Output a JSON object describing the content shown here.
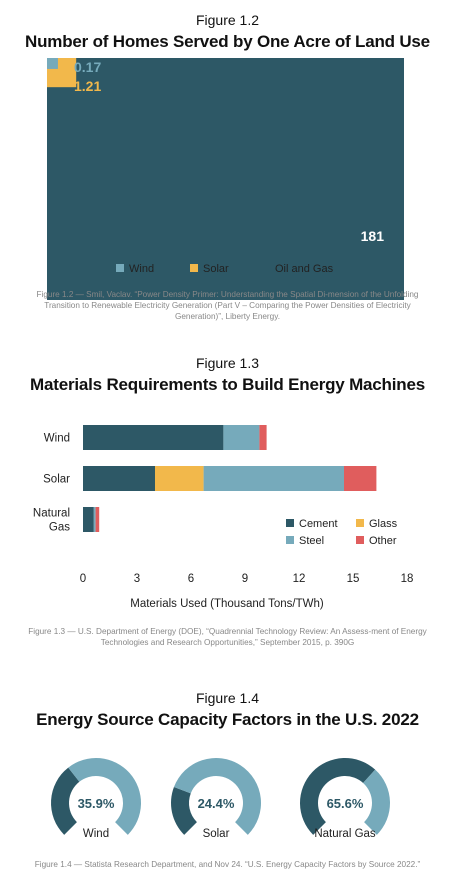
{
  "figures": [
    {
      "label": "Figure 1.2",
      "title": "Number of Homes Served by One Acre of Land Use",
      "caption": "Figure 1.2 — Smil, Vaclav. “Power Density Primer: Understanding the Spatial Di-mension of the Unfolding Transition to Renewable Electricity Generation (Part V – Comparing the Power Densities of Electricity Generation)”, Liberty Energy."
    },
    {
      "label": "Figure 1.3",
      "title": "Materials Requirements to Build Energy Machines",
      "caption": "Figure 1.3 — U.S. Department of Energy (DOE), “Quadrennial Technology Review: An Assess-ment of Energy Technologies and Research Opportunities,” September 2015, p. 390G"
    },
    {
      "label": "Figure 1.4",
      "title": "Energy Source Capacity Factors in the U.S. 2022",
      "caption": "Figure 1.4 — Statista Research Department, and Nov 24. “U.S. Energy Capacity Factors by Source 2022.”"
    }
  ],
  "colors": {
    "dark": "#2d5866",
    "light": "#76aabb",
    "yellow": "#f2b84b",
    "red": "#e05d5d"
  },
  "chart_data": [
    {
      "type": "area",
      "title": "Number of Homes Served by One Acre of Land Use",
      "series": [
        {
          "name": "Wind",
          "value": 0.17,
          "label": "0.17",
          "color": "#76aabb"
        },
        {
          "name": "Solar",
          "value": 1.21,
          "label": "1.21",
          "color": "#f2b84b"
        },
        {
          "name": "Oil and Gas",
          "value": 181,
          "label": "181",
          "color": "#2d5866"
        }
      ],
      "legend": "bottom"
    },
    {
      "type": "bar",
      "orientation": "horizontal",
      "stacked": true,
      "title": "Materials Requirements to Build Energy Machines",
      "categories": [
        "Wind",
        "Solar",
        "Natural Gas"
      ],
      "category_lines": [
        [
          "Wind"
        ],
        [
          "Solar"
        ],
        [
          "Natural",
          "Gas"
        ]
      ],
      "series": [
        {
          "name": "Cement",
          "color": "#2d5866",
          "values": [
            7.8,
            4.0,
            0.6
          ]
        },
        {
          "name": "Glass",
          "color": "#f2b84b",
          "values": [
            0,
            2.7,
            0
          ]
        },
        {
          "name": "Steel",
          "color": "#76aabb",
          "values": [
            2.0,
            7.8,
            0.1
          ]
        },
        {
          "name": "Other",
          "color": "#e05d5d",
          "values": [
            0.4,
            1.8,
            0.2
          ]
        }
      ],
      "xlabel": "Materials Used (Thousand Tons/TWh)",
      "xlim": [
        0,
        18
      ],
      "xticks": [
        "0",
        "3",
        "6",
        "9",
        "12",
        "15",
        "18"
      ],
      "legend": "bottom-right"
    },
    {
      "type": "pie",
      "style": "gauge",
      "title": "Energy Source Capacity Factors in the U.S. 2022",
      "items": [
        {
          "name": "Wind",
          "value": 35.9,
          "label": "35.9%"
        },
        {
          "name": "Solar",
          "value": 24.4,
          "label": "24.4%"
        },
        {
          "name": "Natural Gas",
          "value": 65.6,
          "label": "65.6%"
        }
      ]
    }
  ]
}
